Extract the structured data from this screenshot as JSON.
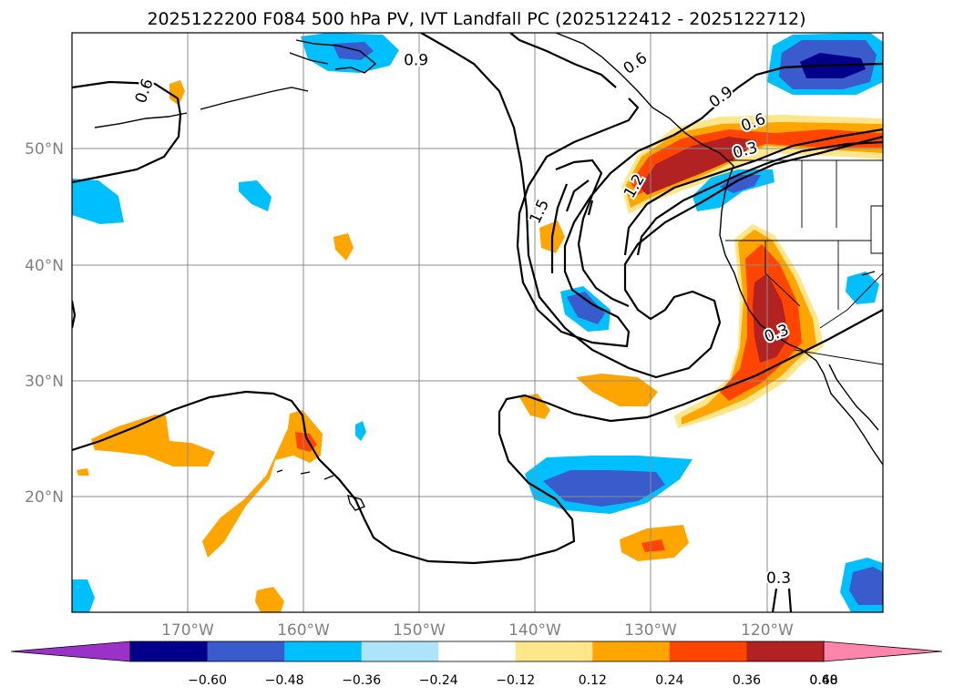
{
  "chart_data": {
    "type": "map-contour",
    "title": "2025122200 F084 500 hPa PV, IVT Landfall PC (2025122412 - 2025122712)",
    "lon_range": [
      -180,
      -110
    ],
    "lat_range": [
      10,
      60
    ],
    "x_ticks": [
      {
        "lon": -170,
        "label": "170°W"
      },
      {
        "lon": -160,
        "label": "160°W"
      },
      {
        "lon": -150,
        "label": "150°W"
      },
      {
        "lon": -140,
        "label": "140°W"
      },
      {
        "lon": -130,
        "label": "130°W"
      },
      {
        "lon": -120,
        "label": "120°W"
      }
    ],
    "y_ticks": [
      {
        "lat": 20,
        "label": "20°N"
      },
      {
        "lat": 30,
        "label": "30°N"
      },
      {
        "lat": 40,
        "label": "40°N"
      },
      {
        "lat": 50,
        "label": "50°N"
      }
    ],
    "colorbar": {
      "levels": [
        -0.6,
        -0.48,
        -0.36,
        -0.24,
        -0.12,
        0.12,
        0.24,
        0.36,
        0.48,
        0.6
      ],
      "labels": [
        "−0.60",
        "−0.48",
        "−0.36",
        "−0.24",
        "−0.12",
        "0.12",
        "0.24",
        "0.36",
        "0.48",
        "0.60"
      ],
      "colors": [
        "#9b32c8",
        "#00008b",
        "#3a5bcc",
        "#00bfff",
        "#ade4fa",
        "#ffffff",
        "#ffe68a",
        "#ffa500",
        "#ff4500",
        "#b22222",
        "#ff85ad"
      ],
      "extend": "both"
    },
    "contour_labels": [
      {
        "text": "0.9",
        "lon": -150.3,
        "lat": 57.7,
        "rot": 0
      },
      {
        "text": "0.6",
        "lon": -131.4,
        "lat": 57.4,
        "rot": -35
      },
      {
        "text": "0.6",
        "lon": -173.8,
        "lat": 55.0,
        "rot": -70
      },
      {
        "text": "0.9",
        "lon": -124.0,
        "lat": 54.5,
        "rot": -35
      },
      {
        "text": "0.6",
        "lon": -121.2,
        "lat": 52.3,
        "rot": -20
      },
      {
        "text": "0.3",
        "lon": -121.9,
        "lat": 49.9,
        "rot": -15
      },
      {
        "text": "1.2",
        "lon": -131.5,
        "lat": 46.8,
        "rot": -60
      },
      {
        "text": "1.5",
        "lon": -139.7,
        "lat": 44.6,
        "rot": -65
      },
      {
        "text": "0.3",
        "lon": -119.2,
        "lat": 34.1,
        "rot": -20
      },
      {
        "text": "0.3",
        "lon": -119.0,
        "lat": 13.0,
        "rot": 0
      }
    ]
  }
}
